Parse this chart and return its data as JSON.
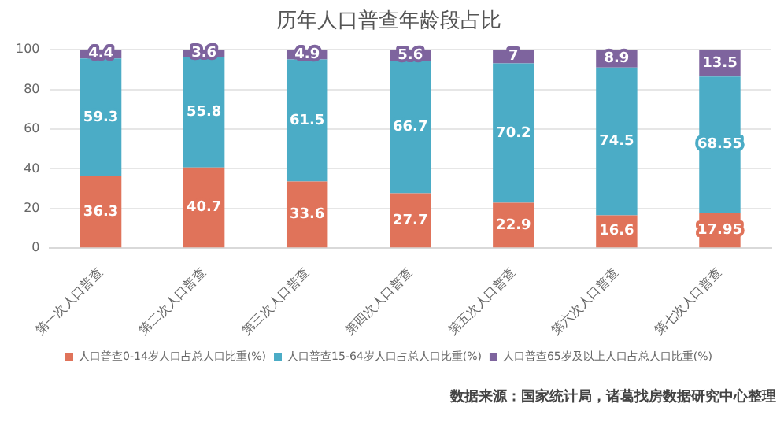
{
  "chart_data": {
    "type": "bar",
    "title": "历年人口普查年龄段占比",
    "stacked": true,
    "categories": [
      "第一次人口普查",
      "第二次人口普查",
      "第三次人口普查",
      "第四次人口普查",
      "第五次人口普查",
      "第六次人口普查",
      "第七次人口普查"
    ],
    "series": [
      {
        "name": "人口普查0-14岁人口占总人口比重(%)",
        "color": "#e0735a",
        "values": [
          36.3,
          40.7,
          33.6,
          27.7,
          22.9,
          16.6,
          17.95
        ]
      },
      {
        "name": "人口普查15-64岁人口占总人口比重(%)",
        "color": "#4bacc6",
        "values": [
          59.3,
          55.8,
          61.5,
          66.7,
          70.2,
          74.5,
          68.55
        ]
      },
      {
        "name": "人口普查65岁及以上人口占总人口比重(%)",
        "color": "#7e649e",
        "values": [
          4.4,
          3.6,
          4.9,
          5.6,
          7,
          8.9,
          13.5
        ]
      }
    ],
    "ylim": [
      0,
      100
    ],
    "yticks": [
      0,
      20,
      40,
      60,
      80,
      100
    ],
    "grid": "y",
    "legend": "bottom",
    "data_labels": true,
    "annotations": [
      "数据来源：国家统计局，诸葛找房数据研究中心整理"
    ]
  }
}
